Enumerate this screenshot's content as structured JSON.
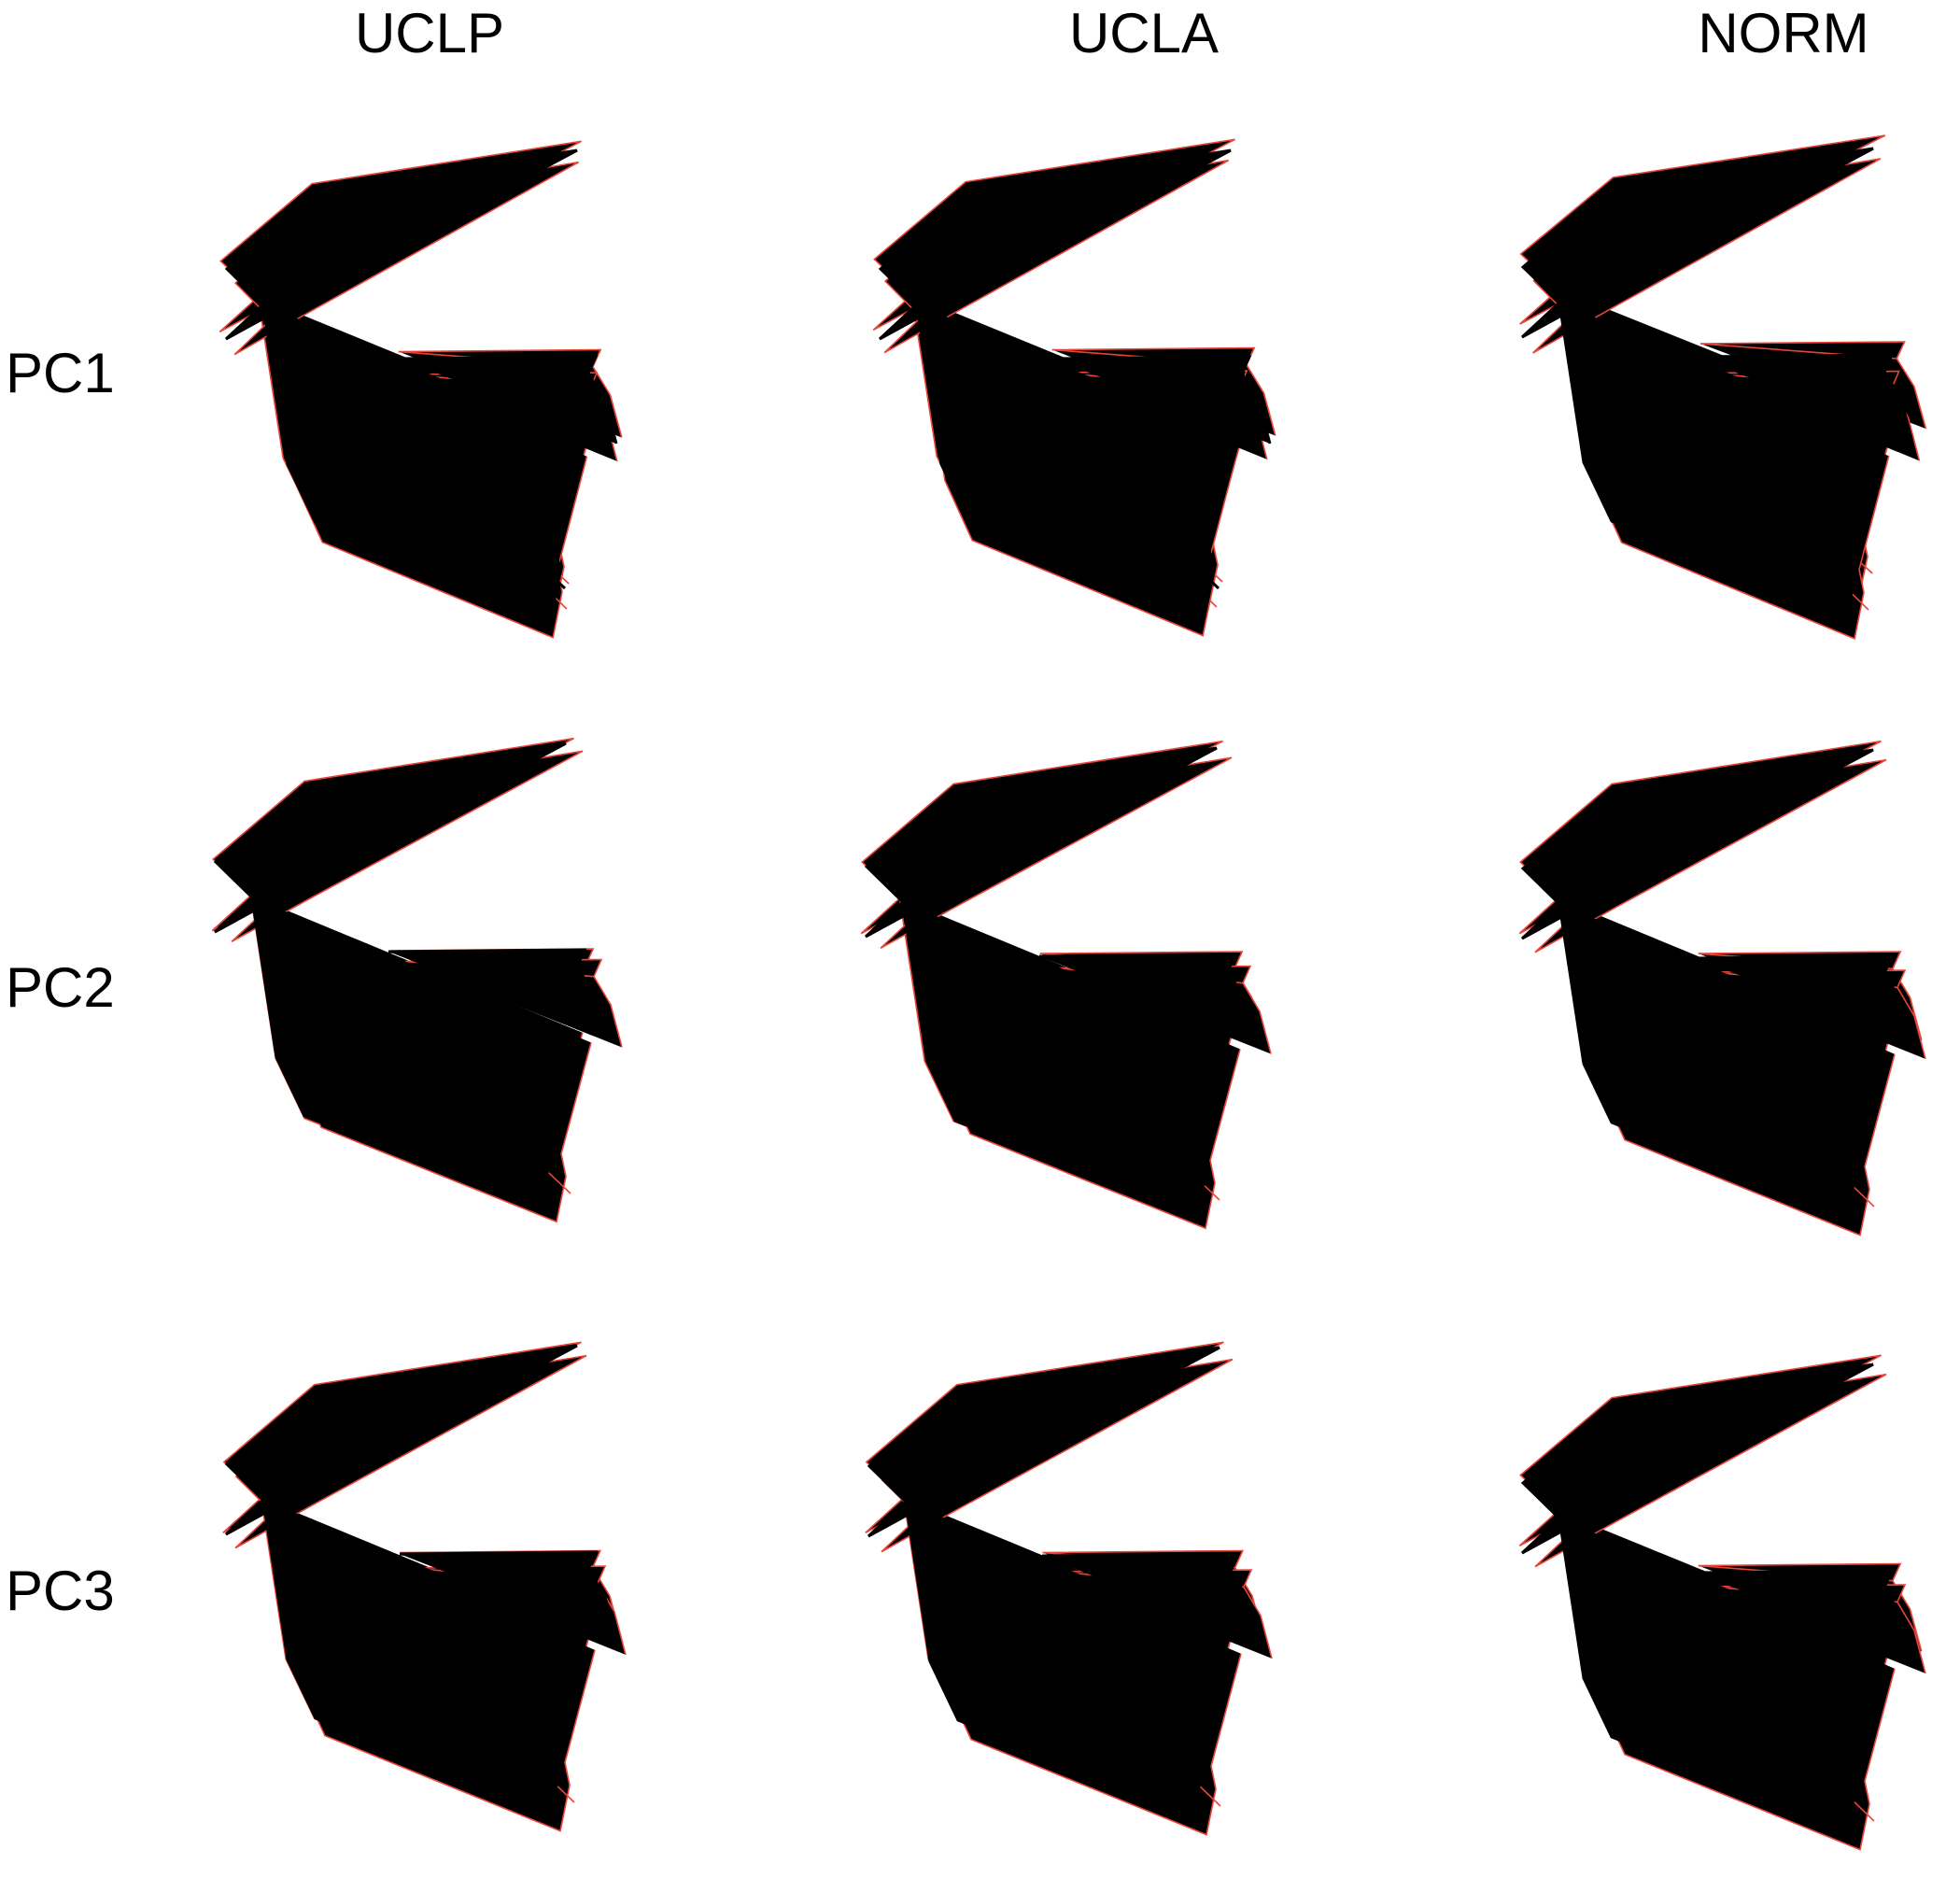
{
  "columns": [
    {
      "id": "uclp",
      "label": "UCLP"
    },
    {
      "id": "ucla",
      "label": "UCLA"
    },
    {
      "id": "norm",
      "label": "NORM"
    }
  ],
  "rows": [
    {
      "id": "pc1",
      "label": "PC1"
    },
    {
      "id": "pc2",
      "label": "PC2"
    },
    {
      "id": "pc3",
      "label": "PC3"
    }
  ],
  "colors": {
    "mean_shape": "#000000",
    "pc_extremes": "#e8443a"
  }
}
